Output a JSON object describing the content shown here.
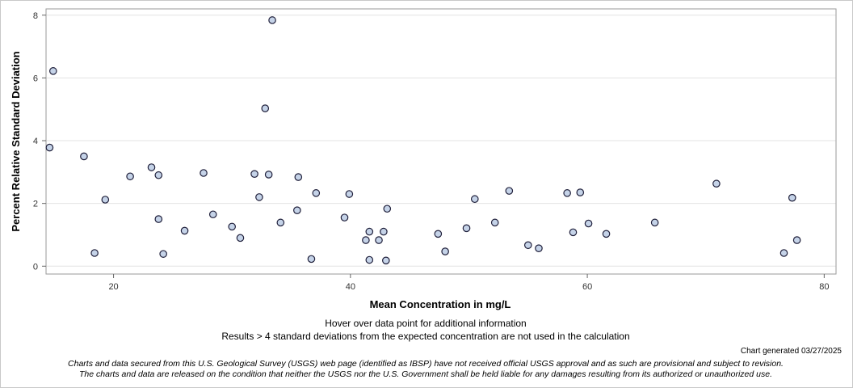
{
  "chart_data": {
    "type": "scatter",
    "xlabel": "Mean Concentration in mg/L",
    "ylabel": "Percent Relative Standard Deviation",
    "xlim": [
      14.3,
      81
    ],
    "ylim": [
      -0.25,
      8.2
    ],
    "xticks": [
      20,
      40,
      60,
      80
    ],
    "yticks": [
      0,
      2,
      4,
      6,
      8
    ],
    "grid": "horizontal",
    "marker_fill": "#c5d3e8",
    "marker_stroke": "#1f1f3a",
    "points": [
      {
        "x": 14.6,
        "y": 3.78
      },
      {
        "x": 14.9,
        "y": 6.22
      },
      {
        "x": 17.5,
        "y": 3.5
      },
      {
        "x": 18.4,
        "y": 0.42
      },
      {
        "x": 19.3,
        "y": 2.12
      },
      {
        "x": 21.4,
        "y": 2.86
      },
      {
        "x": 23.2,
        "y": 3.15
      },
      {
        "x": 23.8,
        "y": 2.9
      },
      {
        "x": 23.8,
        "y": 1.5
      },
      {
        "x": 24.2,
        "y": 0.39
      },
      {
        "x": 26.0,
        "y": 1.13
      },
      {
        "x": 27.6,
        "y": 2.97
      },
      {
        "x": 28.4,
        "y": 1.65
      },
      {
        "x": 30.0,
        "y": 1.26
      },
      {
        "x": 30.7,
        "y": 0.9
      },
      {
        "x": 31.9,
        "y": 2.94
      },
      {
        "x": 32.3,
        "y": 2.2
      },
      {
        "x": 32.8,
        "y": 5.03
      },
      {
        "x": 33.1,
        "y": 2.92
      },
      {
        "x": 33.4,
        "y": 7.84
      },
      {
        "x": 34.1,
        "y": 1.39
      },
      {
        "x": 35.5,
        "y": 1.78
      },
      {
        "x": 35.6,
        "y": 2.84
      },
      {
        "x": 36.7,
        "y": 0.23
      },
      {
        "x": 37.1,
        "y": 2.33
      },
      {
        "x": 39.5,
        "y": 1.55
      },
      {
        "x": 39.9,
        "y": 2.3
      },
      {
        "x": 41.3,
        "y": 0.83
      },
      {
        "x": 41.6,
        "y": 1.1
      },
      {
        "x": 41.6,
        "y": 0.2
      },
      {
        "x": 42.4,
        "y": 0.83
      },
      {
        "x": 42.8,
        "y": 1.1
      },
      {
        "x": 43.0,
        "y": 0.18
      },
      {
        "x": 43.1,
        "y": 1.83
      },
      {
        "x": 47.4,
        "y": 1.03
      },
      {
        "x": 48.0,
        "y": 0.47
      },
      {
        "x": 49.8,
        "y": 1.21
      },
      {
        "x": 50.5,
        "y": 2.14
      },
      {
        "x": 52.2,
        "y": 1.39
      },
      {
        "x": 53.4,
        "y": 2.4
      },
      {
        "x": 55.0,
        "y": 0.67
      },
      {
        "x": 55.9,
        "y": 0.57
      },
      {
        "x": 58.3,
        "y": 2.33
      },
      {
        "x": 58.8,
        "y": 1.08
      },
      {
        "x": 59.4,
        "y": 2.35
      },
      {
        "x": 60.1,
        "y": 1.36
      },
      {
        "x": 61.6,
        "y": 1.03
      },
      {
        "x": 65.7,
        "y": 1.39
      },
      {
        "x": 70.9,
        "y": 2.63
      },
      {
        "x": 76.6,
        "y": 0.42
      },
      {
        "x": 77.3,
        "y": 2.18
      },
      {
        "x": 77.7,
        "y": 0.83
      }
    ]
  },
  "notes": {
    "hover": "Hover over data point for additional information",
    "exclusion": "Results > 4 standard deviations from the expected concentration are not used in the calculation",
    "generated": "Chart generated 03/27/2025",
    "disclaimer_line1": "Charts and data secured from this U.S. Geological Survey (USGS) web page (identified as IBSP) have not received official USGS approval and as such are provisional and subject to revision.",
    "disclaimer_line2": "The charts and data are released on the condition that neither the USGS nor the U.S. Government shall be held liable for any damages resulting from its authorized or unauthorized use."
  }
}
